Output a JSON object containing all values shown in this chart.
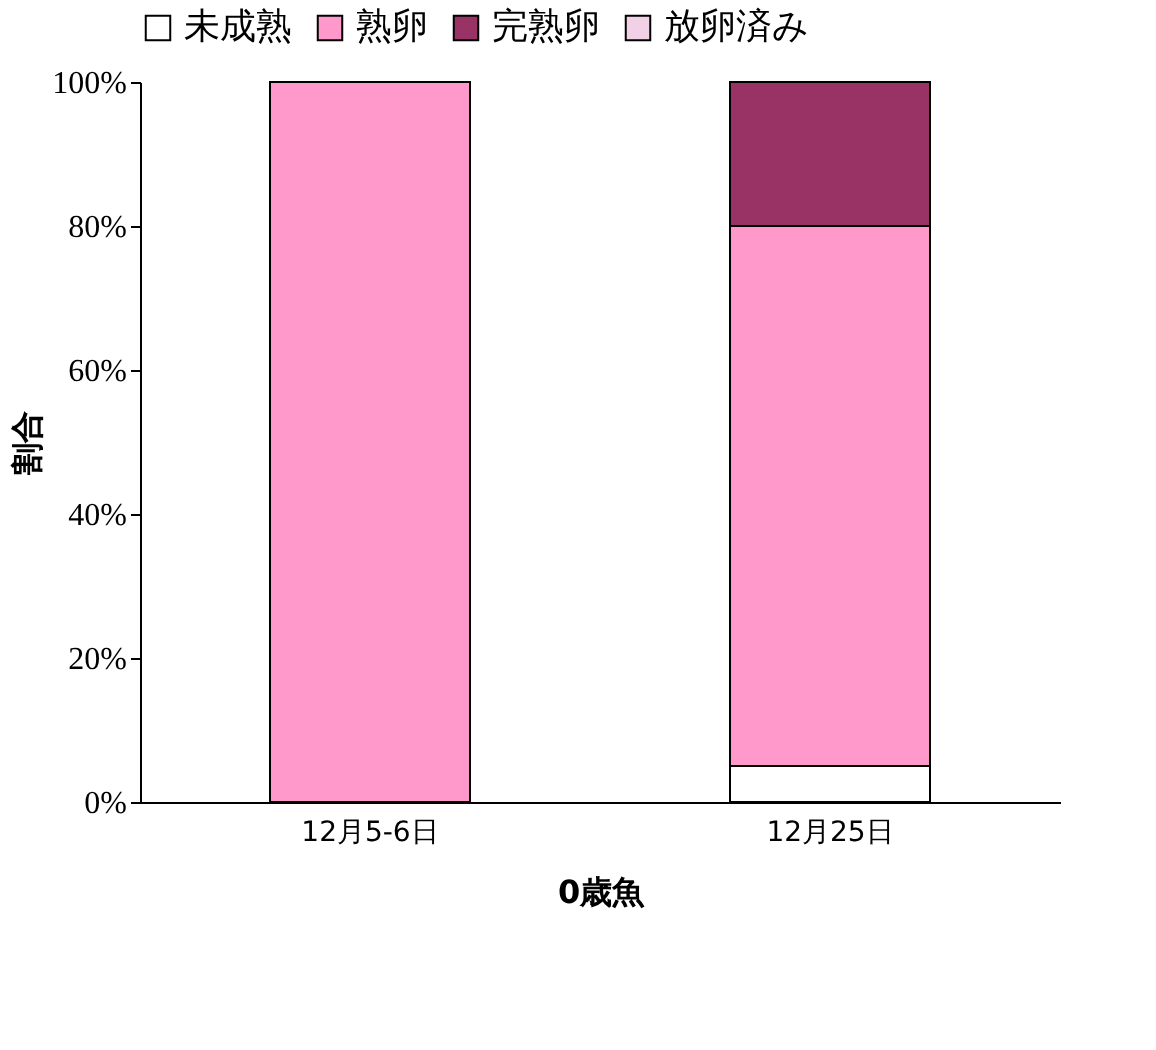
{
  "chart_data": {
    "type": "bar",
    "stacked": true,
    "categories": [
      "12月5-6日",
      "12月25日"
    ],
    "xlabel": "0歳魚",
    "ylabel": "割合",
    "series": [
      {
        "name": "未成熟",
        "color": "#ffffff",
        "values": [
          0,
          5
        ]
      },
      {
        "name": "熟卵",
        "color": "#ff99cc",
        "values": [
          100,
          75
        ]
      },
      {
        "name": "完熟卵",
        "color": "#993366",
        "values": [
          0,
          20
        ]
      },
      {
        "name": "放卵済み",
        "color": "#f2d0e6",
        "values": [
          0,
          0
        ]
      }
    ],
    "ylim": [
      0,
      100
    ],
    "yticks": [
      {
        "value": 0,
        "label": "0%"
      },
      {
        "value": 20,
        "label": "20%"
      },
      {
        "value": 40,
        "label": "40%"
      },
      {
        "value": 60,
        "label": "60%"
      },
      {
        "value": 80,
        "label": "80%"
      },
      {
        "value": 100,
        "label": "100%"
      }
    ],
    "grid": false,
    "legend": "top"
  }
}
